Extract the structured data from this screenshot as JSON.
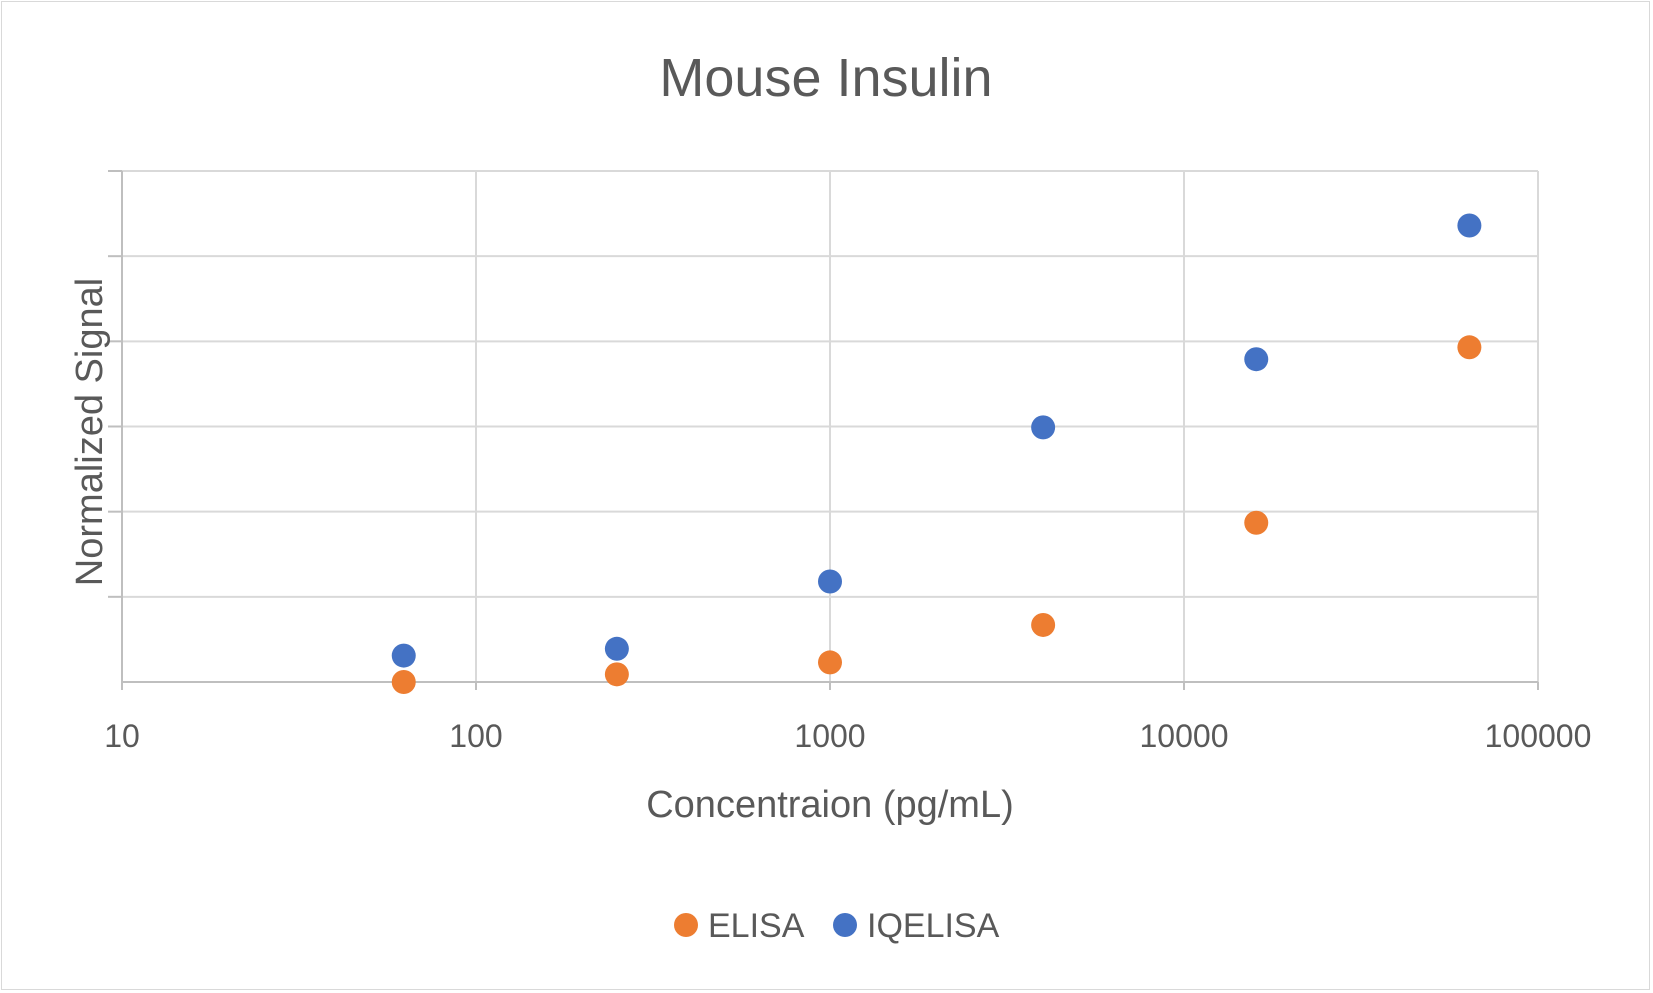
{
  "chart_data": {
    "type": "scatter",
    "title": "Mouse Insulin",
    "xlabel": "Concentraion (pg/mL)",
    "ylabel": "Normalized Signal",
    "x_scale": "log",
    "xlim": [
      10,
      100000
    ],
    "x_ticks": [
      "10",
      "100",
      "1000",
      "10000",
      "100000"
    ],
    "ylim": [
      0,
      6
    ],
    "y_gridlines": 6,
    "grid": true,
    "legend_position": "bottom",
    "series": [
      {
        "name": "ELISA",
        "color": "#ED7D31",
        "x": [
          62.5,
          250,
          1000,
          4000,
          16000,
          64000
        ],
        "y": [
          0.0,
          0.09,
          0.23,
          0.67,
          1.87,
          3.93
        ]
      },
      {
        "name": "IQELISA",
        "color": "#4472C4",
        "x": [
          62.5,
          250,
          1000,
          4000,
          16000,
          64000
        ],
        "y": [
          0.31,
          0.39,
          1.18,
          2.99,
          3.79,
          5.36
        ]
      }
    ]
  }
}
